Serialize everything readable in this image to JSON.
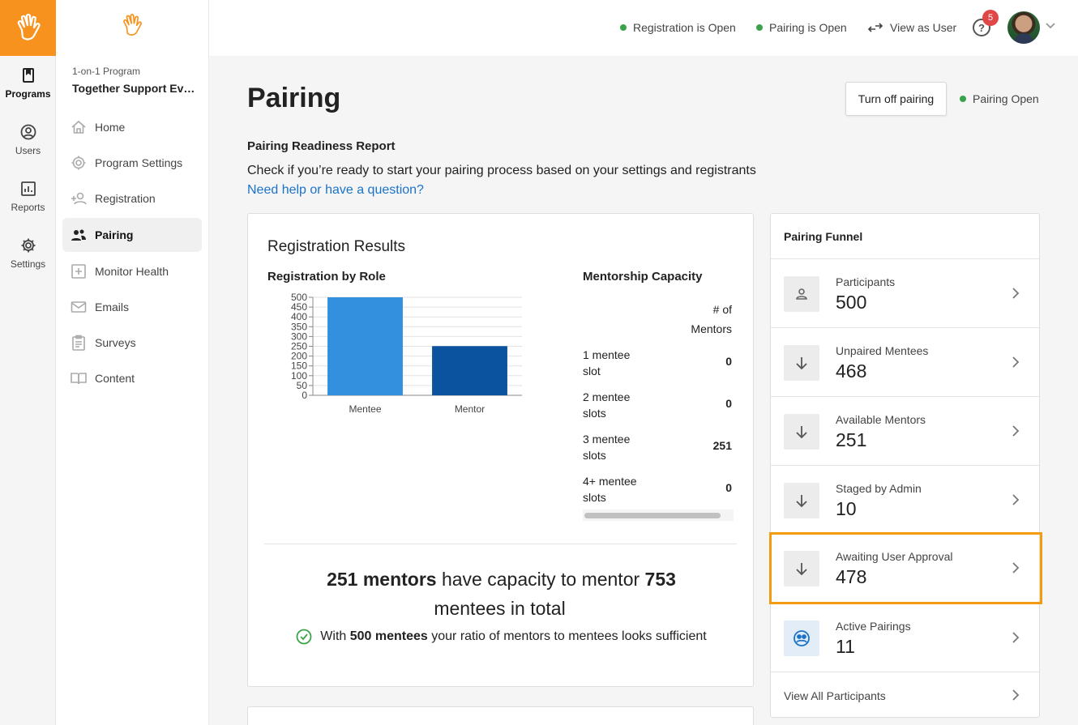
{
  "rail": {
    "items": [
      {
        "label": "Programs",
        "icon": "book-icon"
      },
      {
        "label": "Users",
        "icon": "user-circle-icon"
      },
      {
        "label": "Reports",
        "icon": "bar-chart-icon"
      },
      {
        "label": "Settings",
        "icon": "gear-icon"
      }
    ]
  },
  "sidebar": {
    "program_type": "1-on-1 Program",
    "program_name": "Together Support Ev…",
    "items": [
      {
        "label": "Home",
        "icon": "home-icon"
      },
      {
        "label": "Program Settings",
        "icon": "gear-icon"
      },
      {
        "label": "Registration",
        "icon": "add-user-icon"
      },
      {
        "label": "Pairing",
        "icon": "users-icon"
      },
      {
        "label": "Monitor Health",
        "icon": "health-cross-icon"
      },
      {
        "label": "Emails",
        "icon": "mail-icon"
      },
      {
        "label": "Surveys",
        "icon": "clipboard-icon"
      },
      {
        "label": "Content",
        "icon": "book-open-icon"
      }
    ]
  },
  "topbar": {
    "registration_status": "Registration is Open",
    "pairing_status": "Pairing is Open",
    "view_as_user": "View as User",
    "help_symbol": "?",
    "notification_count": "5"
  },
  "page": {
    "title": "Pairing",
    "turn_off_button": "Turn off pairing",
    "pairing_badge": "Pairing Open",
    "report_title": "Pairing Readiness Report",
    "report_description": "Check if you’re ready to start your pairing process based on your settings and registrants",
    "help_link": "Need help or have a question?"
  },
  "registration": {
    "title": "Registration Results",
    "by_role_title": "Registration by Role",
    "capacity_title": "Mentorship Capacity",
    "capacity_header": "# of Mentors",
    "capacity_rows": [
      {
        "label": "1 mentee slot",
        "value": "0"
      },
      {
        "label": "2 mentee slots",
        "value": "0"
      },
      {
        "label": "3 mentee slots",
        "value": "251"
      },
      {
        "label": "4+ mentee slots",
        "value": "0"
      }
    ],
    "summary": {
      "mentors_bold": "251 mentors",
      "mid_text": " have capacity to mentor ",
      "mentees_bold": "753",
      "end_text": " mentees in total"
    },
    "sufficient": {
      "prefix": "With ",
      "bold": "500 mentees",
      "suffix": " your ratio of mentors to mentees looks sufficient"
    }
  },
  "chart_data": {
    "type": "bar",
    "categories": [
      "Mentee",
      "Mentor"
    ],
    "values": [
      500,
      251
    ],
    "title": "",
    "xlabel": "",
    "ylabel": "",
    "ylim": [
      0,
      500
    ],
    "yticks": [
      0,
      50,
      100,
      150,
      200,
      250,
      300,
      350,
      400,
      450,
      500
    ],
    "colors": [
      "#3390df",
      "#0b539e"
    ],
    "grid": true
  },
  "funnel": {
    "title": "Pairing Funnel",
    "rows": [
      {
        "label": "Participants",
        "value": "500",
        "icon": "person-icon"
      },
      {
        "label": "Unpaired Mentees",
        "value": "468",
        "icon": "arrow-down-icon"
      },
      {
        "label": "Available Mentors",
        "value": "251",
        "icon": "arrow-down-icon"
      },
      {
        "label": "Staged by Admin",
        "value": "10",
        "icon": "arrow-down-icon"
      },
      {
        "label": "Awaiting User Approval",
        "value": "478",
        "icon": "arrow-down-icon"
      },
      {
        "label": "Active Pairings",
        "value": "11",
        "icon": "pairing-icon"
      }
    ],
    "view_all": "View All Participants",
    "highlight_color": "#f39c12"
  }
}
